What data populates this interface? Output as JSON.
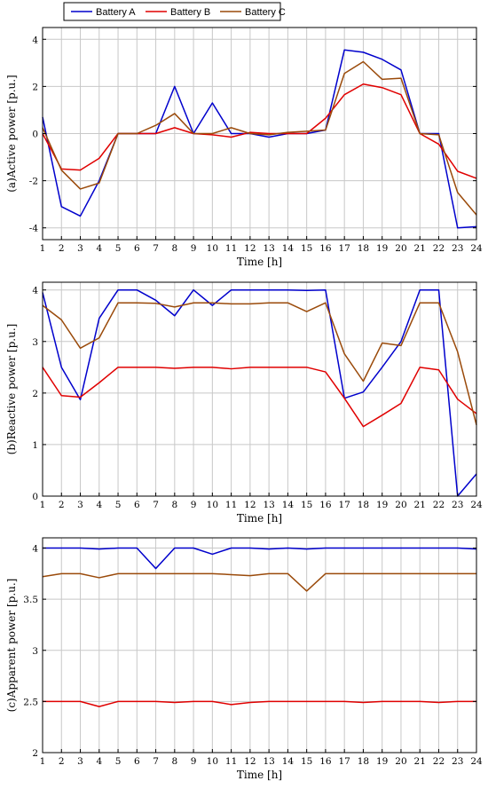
{
  "legend": [
    {
      "label": "Battery A",
      "color": "#0000cc"
    },
    {
      "label": "Battery B",
      "color": "#e00000"
    },
    {
      "label": "Battery C",
      "color": "#9a4a0a"
    }
  ],
  "chart_data": [
    {
      "type": "line",
      "xlabel": "Time [h]",
      "ylabel": "(a)Active power [p.u.]",
      "x": [
        1,
        2,
        3,
        4,
        5,
        6,
        7,
        8,
        9,
        10,
        11,
        12,
        13,
        14,
        15,
        16,
        17,
        18,
        19,
        20,
        21,
        22,
        23,
        24
      ],
      "xlim": [
        1,
        24
      ],
      "ylim": [
        -4.5,
        4.5
      ],
      "yticks": [
        -4,
        -2,
        0,
        2,
        4
      ],
      "grid": true,
      "series": [
        {
          "name": "Battery A",
          "values": [
            0.7,
            -3.1,
            -3.5,
            -2.0,
            0.0,
            0.0,
            0.0,
            2.0,
            0.0,
            1.3,
            0.0,
            0.0,
            -0.15,
            0.0,
            0.0,
            0.15,
            3.55,
            3.45,
            3.15,
            2.7,
            0.0,
            0.0,
            -4.0,
            -3.95
          ]
        },
        {
          "name": "Battery B",
          "values": [
            0.0,
            -1.5,
            -1.55,
            -1.05,
            0.0,
            0.0,
            0.0,
            0.25,
            0.0,
            -0.05,
            -0.15,
            0.05,
            0.0,
            0.0,
            0.0,
            0.65,
            1.65,
            2.1,
            1.95,
            1.65,
            0.0,
            -0.45,
            -1.6,
            -1.9
          ]
        },
        {
          "name": "Battery C",
          "values": [
            0.25,
            -1.55,
            -2.35,
            -2.1,
            0.0,
            0.0,
            0.35,
            0.85,
            0.0,
            0.0,
            0.25,
            0.0,
            -0.05,
            0.05,
            0.1,
            0.15,
            2.55,
            3.05,
            2.3,
            2.35,
            0.0,
            -0.05,
            -2.5,
            -3.45
          ]
        }
      ]
    },
    {
      "type": "line",
      "xlabel": "Time [h]",
      "ylabel": "(b)Reactive power [p.u.]",
      "x": [
        1,
        2,
        3,
        4,
        5,
        6,
        7,
        8,
        9,
        10,
        11,
        12,
        13,
        14,
        15,
        16,
        17,
        18,
        19,
        20,
        21,
        22,
        23,
        24
      ],
      "xlim": [
        1,
        24
      ],
      "ylim": [
        0,
        4.15
      ],
      "yticks": [
        0,
        1,
        2,
        3,
        4
      ],
      "grid": true,
      "series": [
        {
          "name": "Battery A",
          "values": [
            3.95,
            2.5,
            1.87,
            3.45,
            4.0,
            4.0,
            3.8,
            3.5,
            4.0,
            3.7,
            4.0,
            4.0,
            4.0,
            4.0,
            3.99,
            4.0,
            1.9,
            2.02,
            2.5,
            3.0,
            4.0,
            4.0,
            0.0,
            0.43
          ]
        },
        {
          "name": "Battery B",
          "values": [
            2.5,
            1.95,
            1.92,
            2.2,
            2.5,
            2.5,
            2.5,
            2.48,
            2.5,
            2.5,
            2.47,
            2.5,
            2.5,
            2.5,
            2.5,
            2.41,
            1.9,
            1.35,
            1.57,
            1.8,
            2.5,
            2.45,
            1.88,
            1.6
          ]
        },
        {
          "name": "Battery C",
          "values": [
            3.7,
            3.42,
            2.87,
            3.07,
            3.75,
            3.75,
            3.74,
            3.67,
            3.75,
            3.75,
            3.73,
            3.73,
            3.75,
            3.75,
            3.58,
            3.75,
            2.76,
            2.23,
            2.97,
            2.92,
            3.75,
            3.75,
            2.8,
            1.38
          ]
        }
      ]
    },
    {
      "type": "line",
      "xlabel": "Time [h]",
      "ylabel": "(c)Apparent power [p.u.]",
      "x": [
        1,
        2,
        3,
        4,
        5,
        6,
        7,
        8,
        9,
        10,
        11,
        12,
        13,
        14,
        15,
        16,
        17,
        18,
        19,
        20,
        21,
        22,
        23,
        24
      ],
      "xlim": [
        1,
        24
      ],
      "ylim": [
        2,
        4.1
      ],
      "yticks": [
        2,
        2.5,
        3,
        3.5,
        4
      ],
      "grid": true,
      "series": [
        {
          "name": "Battery A",
          "values": [
            4.0,
            4.0,
            4.0,
            3.99,
            4.0,
            4.0,
            3.8,
            4.0,
            4.0,
            3.94,
            4.0,
            4.0,
            3.99,
            4.0,
            3.99,
            4.0,
            4.0,
            4.0,
            4.0,
            4.0,
            4.0,
            4.0,
            4.0,
            3.99
          ]
        },
        {
          "name": "Battery B",
          "values": [
            2.5,
            2.5,
            2.5,
            2.45,
            2.5,
            2.5,
            2.5,
            2.49,
            2.5,
            2.5,
            2.47,
            2.49,
            2.5,
            2.5,
            2.5,
            2.5,
            2.5,
            2.49,
            2.5,
            2.5,
            2.5,
            2.49,
            2.5,
            2.5
          ]
        },
        {
          "name": "Battery C",
          "values": [
            3.72,
            3.75,
            3.75,
            3.71,
            3.75,
            3.75,
            3.75,
            3.75,
            3.75,
            3.75,
            3.74,
            3.73,
            3.75,
            3.75,
            3.58,
            3.75,
            3.75,
            3.75,
            3.75,
            3.75,
            3.75,
            3.75,
            3.75,
            3.75
          ]
        }
      ]
    }
  ]
}
